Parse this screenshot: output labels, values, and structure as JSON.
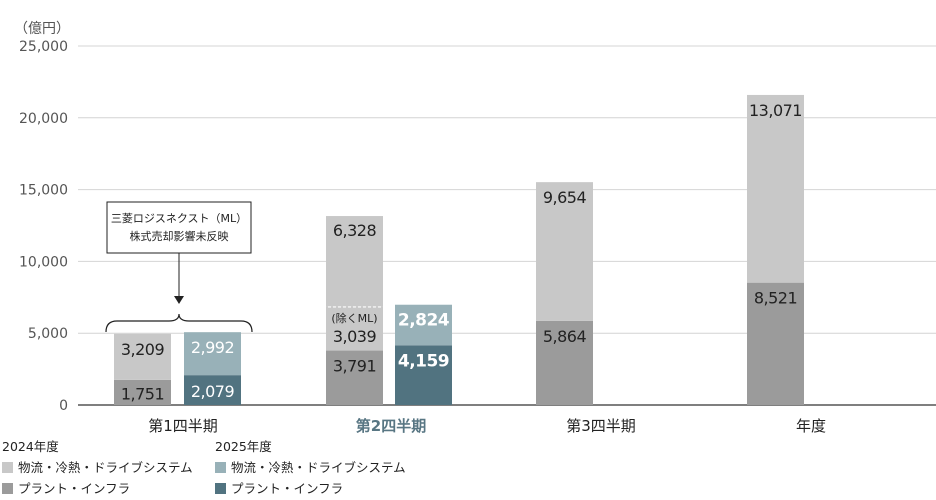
{
  "chart_data": {
    "type": "bar",
    "stacked": true,
    "unit_label": "（億円）",
    "y_ticks": [
      "25,000",
      "20,000",
      "15,000",
      "10,000",
      "5,000",
      "0"
    ],
    "ylim": [
      0,
      25000
    ],
    "grid": true,
    "categories": [
      "第1四半期",
      "第2四半期",
      "第3四半期",
      "年度"
    ],
    "highlight_category": "第2四半期",
    "legend": [
      {
        "group": "2024年度",
        "items": [
          {
            "label": "物流・冷熱・ドライブシステム",
            "color": "#c8c8c8"
          },
          {
            "label": "プラント・インフラ",
            "color": "#9b9b9b"
          }
        ]
      },
      {
        "group": "2025年度",
        "items": [
          {
            "label": "物流・冷熱・ドライブシステム",
            "color": "#98b1b8"
          },
          {
            "label": "プラント・インフラ",
            "color": "#517380"
          }
        ]
      }
    ],
    "bars": [
      {
        "category": "第1四半期",
        "year": "2024年度",
        "plant": 1751,
        "plant_label": "1,751",
        "logistics": 3209,
        "logistics_label": "3,209"
      },
      {
        "category": "第1四半期",
        "year": "2025年度",
        "plant": 2079,
        "plant_label": "2,079",
        "logistics": 2992,
        "logistics_label": "2,992"
      },
      {
        "category": "第2四半期",
        "year": "2024年度",
        "plant": 3791,
        "plant_label": "3,791",
        "logistics": 3039,
        "logistics_label": "3,039",
        "ml": 6328,
        "ml_label": "6,328",
        "ml_note": "(除くML)"
      },
      {
        "category": "第2四半期",
        "year": "2025年度",
        "plant": 4159,
        "plant_label": "4,159",
        "logistics": 2824,
        "logistics_label": "2,824"
      },
      {
        "category": "第3四半期",
        "year": "2024年度",
        "plant": 5864,
        "plant_label": "5,864",
        "logistics": 9654,
        "logistics_label": "9,654"
      },
      {
        "category": "年度",
        "year": "2024年度",
        "plant": 8521,
        "plant_label": "8,521",
        "logistics": 13071,
        "logistics_label": "13,071"
      }
    ],
    "annotation": {
      "lines": [
        "三菱ロジスネクスト（ML）",
        "株式売却影響未反映"
      ]
    },
    "colors": {
      "y2024_logistics": "#c8c8c8",
      "y2024_plant": "#9b9b9b",
      "y2025_logistics": "#98b1b8",
      "y2025_plant": "#517380",
      "grid": "#d4d4d4",
      "axis": "#333333"
    }
  }
}
